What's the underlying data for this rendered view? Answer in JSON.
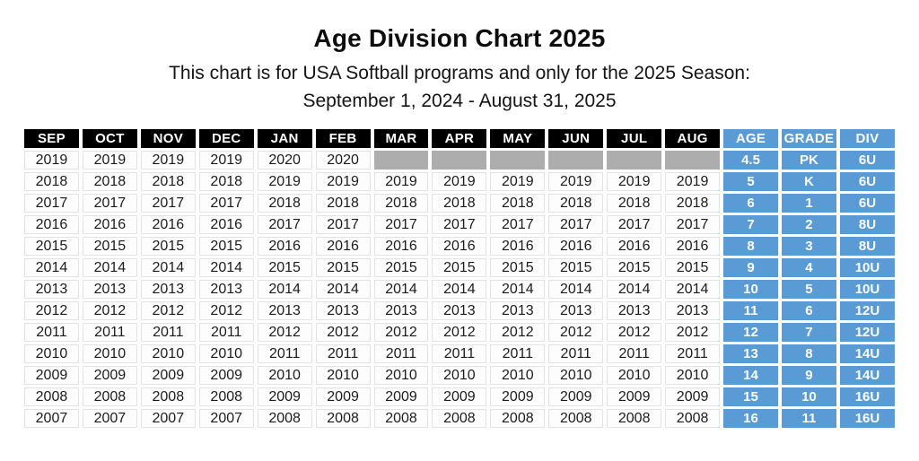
{
  "header": {
    "title": "Age Division Chart 2025",
    "subtitle_line1": "This chart is for USA Softball programs and only for the 2025 Season:",
    "subtitle_line2": "September 1, 2024 - August 31, 2025"
  },
  "colors": {
    "month_header_bg": "#000000",
    "accent_blue": "#5B9BD5",
    "unavailable_gray": "#ADADAD",
    "cell_border": "#E3E3E3"
  },
  "chart_data": {
    "type": "table",
    "title": "Age Division Chart 2025",
    "columns": [
      "SEP",
      "OCT",
      "NOV",
      "DEC",
      "JAN",
      "FEB",
      "MAR",
      "APR",
      "MAY",
      "JUN",
      "JUL",
      "AUG",
      "AGE",
      "GRADE",
      "DIV"
    ],
    "month_columns": 12,
    "rows": [
      {
        "months": [
          "2019",
          "2019",
          "2019",
          "2019",
          "2020",
          "2020",
          "",
          "",
          "",
          "",
          "",
          ""
        ],
        "age": "4.5",
        "grade": "PK",
        "div": "6U"
      },
      {
        "months": [
          "2018",
          "2018",
          "2018",
          "2018",
          "2019",
          "2019",
          "2019",
          "2019",
          "2019",
          "2019",
          "2019",
          "2019"
        ],
        "age": "5",
        "grade": "K",
        "div": "6U"
      },
      {
        "months": [
          "2017",
          "2017",
          "2017",
          "2017",
          "2018",
          "2018",
          "2018",
          "2018",
          "2018",
          "2018",
          "2018",
          "2018"
        ],
        "age": "6",
        "grade": "1",
        "div": "6U"
      },
      {
        "months": [
          "2016",
          "2016",
          "2016",
          "2016",
          "2017",
          "2017",
          "2017",
          "2017",
          "2017",
          "2017",
          "2017",
          "2017"
        ],
        "age": "7",
        "grade": "2",
        "div": "8U"
      },
      {
        "months": [
          "2015",
          "2015",
          "2015",
          "2015",
          "2016",
          "2016",
          "2016",
          "2016",
          "2016",
          "2016",
          "2016",
          "2016"
        ],
        "age": "8",
        "grade": "3",
        "div": "8U"
      },
      {
        "months": [
          "2014",
          "2014",
          "2014",
          "2014",
          "2015",
          "2015",
          "2015",
          "2015",
          "2015",
          "2015",
          "2015",
          "2015"
        ],
        "age": "9",
        "grade": "4",
        "div": "10U"
      },
      {
        "months": [
          "2013",
          "2013",
          "2013",
          "2013",
          "2014",
          "2014",
          "2014",
          "2014",
          "2014",
          "2014",
          "2014",
          "2014"
        ],
        "age": "10",
        "grade": "5",
        "div": "10U"
      },
      {
        "months": [
          "2012",
          "2012",
          "2012",
          "2012",
          "2013",
          "2013",
          "2013",
          "2013",
          "2013",
          "2013",
          "2013",
          "2013"
        ],
        "age": "11",
        "grade": "6",
        "div": "12U"
      },
      {
        "months": [
          "2011",
          "2011",
          "2011",
          "2011",
          "2012",
          "2012",
          "2012",
          "2012",
          "2012",
          "2012",
          "2012",
          "2012"
        ],
        "age": "12",
        "grade": "7",
        "div": "12U"
      },
      {
        "months": [
          "2010",
          "2010",
          "2010",
          "2010",
          "2011",
          "2011",
          "2011",
          "2011",
          "2011",
          "2011",
          "2011",
          "2011"
        ],
        "age": "13",
        "grade": "8",
        "div": "14U"
      },
      {
        "months": [
          "2009",
          "2009",
          "2009",
          "2009",
          "2010",
          "2010",
          "2010",
          "2010",
          "2010",
          "2010",
          "2010",
          "2010"
        ],
        "age": "14",
        "grade": "9",
        "div": "14U"
      },
      {
        "months": [
          "2008",
          "2008",
          "2008",
          "2008",
          "2009",
          "2009",
          "2009",
          "2009",
          "2009",
          "2009",
          "2009",
          "2009"
        ],
        "age": "15",
        "grade": "10",
        "div": "16U"
      },
      {
        "months": [
          "2007",
          "2007",
          "2007",
          "2007",
          "2008",
          "2008",
          "2008",
          "2008",
          "2008",
          "2008",
          "2008",
          "2008"
        ],
        "age": "16",
        "grade": "11",
        "div": "16U"
      }
    ]
  }
}
